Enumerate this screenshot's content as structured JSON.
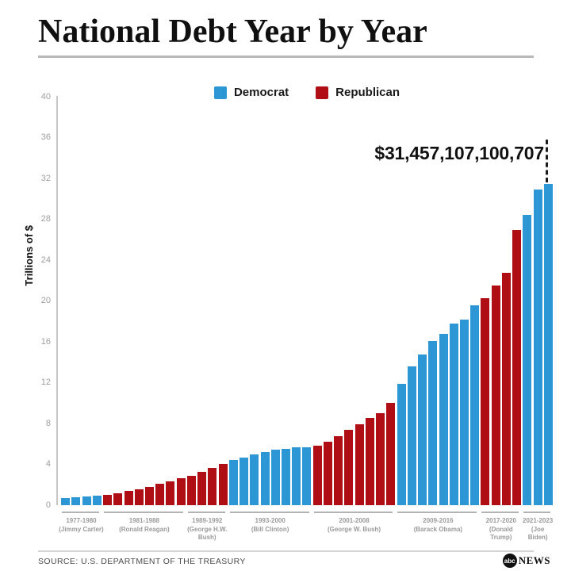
{
  "page": {
    "title": "National Debt Year by Year",
    "source": "SOURCE: U.S. DEPARTMENT OF THE TREASURY",
    "logo": {
      "circle_text": "abc",
      "wordmark": "NEWS"
    }
  },
  "chart_data": {
    "type": "bar",
    "title": "National Debt Year by Year",
    "ylabel": "Trillions of $",
    "ylim": [
      0,
      40
    ],
    "ytick_step": 4,
    "grid": false,
    "colors": {
      "D": "#2D96D5",
      "R": "#AF0E14"
    },
    "legend": {
      "position": "top-center",
      "items": [
        {
          "label": "Democrat",
          "party": "D",
          "color": "#2D96D5"
        },
        {
          "label": "Republican",
          "party": "R",
          "color": "#AF0E14"
        }
      ]
    },
    "annotation": {
      "text": "$31,457,107,100,707",
      "points_to_year": 2023
    },
    "years": [
      1977,
      1978,
      1979,
      1980,
      1981,
      1982,
      1983,
      1984,
      1985,
      1986,
      1987,
      1988,
      1989,
      1990,
      1991,
      1992,
      1993,
      1994,
      1995,
      1996,
      1997,
      1998,
      1999,
      2000,
      2001,
      2002,
      2003,
      2004,
      2005,
      2006,
      2007,
      2008,
      2009,
      2010,
      2011,
      2012,
      2013,
      2014,
      2015,
      2016,
      2017,
      2018,
      2019,
      2020,
      2021,
      2022,
      2023
    ],
    "values": [
      0.699,
      0.772,
      0.827,
      0.908,
      0.998,
      1.142,
      1.377,
      1.572,
      1.823,
      2.125,
      2.35,
      2.602,
      2.857,
      3.233,
      3.665,
      4.065,
      4.411,
      4.693,
      4.974,
      5.225,
      5.413,
      5.526,
      5.656,
      5.674,
      5.807,
      6.228,
      6.783,
      7.379,
      7.933,
      8.507,
      9.008,
      10.025,
      11.91,
      13.562,
      14.79,
      16.066,
      16.738,
      17.824,
      18.151,
      19.573,
      20.245,
      21.516,
      22.719,
      26.945,
      28.429,
      30.928,
      31.457
    ],
    "groups": [
      {
        "party": "D",
        "count": 4,
        "label_lines": [
          "1977-1980",
          "(Jimmy Carter)"
        ]
      },
      {
        "party": "R",
        "count": 8,
        "label_lines": [
          "1981-1988",
          "(Ronald Reagan)"
        ]
      },
      {
        "party": "R",
        "count": 4,
        "label_lines": [
          "1989-1992",
          "(George H.W.",
          "Bush)"
        ]
      },
      {
        "party": "D",
        "count": 8,
        "label_lines": [
          "1993-2000",
          "(Bill Clinton)"
        ]
      },
      {
        "party": "R",
        "count": 8,
        "label_lines": [
          "2001-2008",
          "(George W. Bush)"
        ]
      },
      {
        "party": "D",
        "count": 8,
        "label_lines": [
          "2009-2016",
          "(Barack Obama)"
        ]
      },
      {
        "party": "R",
        "count": 4,
        "label_lines": [
          "2017-2020",
          "(Donald",
          "Trump)"
        ]
      },
      {
        "party": "D",
        "count": 3,
        "label_lines": [
          "2021-2023",
          "(Joe",
          "Biden)"
        ]
      }
    ]
  }
}
